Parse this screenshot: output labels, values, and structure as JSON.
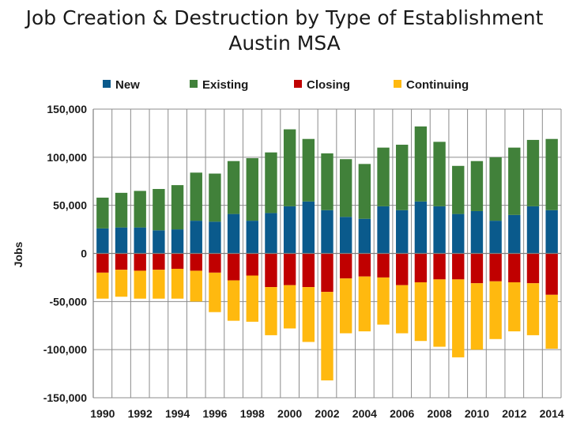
{
  "chart_data": {
    "type": "bar",
    "stacked": true,
    "title": "Job Creation & Destruction by Type of Establishment",
    "subtitle": "Austin MSA",
    "ylabel": "Jobs",
    "xlabel": "",
    "ylim": [
      -150000,
      150000
    ],
    "yticks": [
      150000,
      100000,
      50000,
      0,
      -50000,
      -100000,
      -150000
    ],
    "ytick_labels": [
      "150,000",
      "100,000",
      "50,000",
      "0",
      "-50,000",
      "-100,000",
      "-150,000"
    ],
    "xtick_labels": [
      "1990",
      "1992",
      "1994",
      "1996",
      "1998",
      "2000",
      "2002",
      "2004",
      "2006",
      "2008",
      "2010",
      "2012",
      "2014"
    ],
    "grid": true,
    "legend_position": "top",
    "categories": [
      "1990",
      "1991",
      "1992",
      "1993",
      "1994",
      "1995",
      "1996",
      "1997",
      "1998",
      "1999",
      "2000",
      "2001",
      "2002",
      "2003",
      "2004",
      "2005",
      "2006",
      "2007",
      "2008",
      "2009",
      "2010",
      "2011",
      "2012",
      "2013",
      "2014"
    ],
    "series": [
      {
        "name": "New",
        "color": "#0a5a8c",
        "values": [
          26000,
          27000,
          27000,
          24000,
          25000,
          34000,
          33000,
          41000,
          34000,
          42000,
          49000,
          54000,
          45000,
          38000,
          36000,
          49000,
          45000,
          54000,
          49000,
          41000,
          44000,
          34000,
          40000,
          49000,
          45000
        ]
      },
      {
        "name": "Existing",
        "color": "#41813a",
        "values": [
          32000,
          36000,
          38000,
          43000,
          46000,
          50000,
          50000,
          55000,
          65000,
          63000,
          80000,
          65000,
          59000,
          60000,
          57000,
          61000,
          68000,
          78000,
          67000,
          50000,
          52000,
          66000,
          70000,
          69000,
          74000
        ]
      },
      {
        "name": "Closing",
        "color": "#c00000",
        "values": [
          -20000,
          -17000,
          -18000,
          -17000,
          -16000,
          -18000,
          -20000,
          -28000,
          -23000,
          -35000,
          -33000,
          -35000,
          -40000,
          -26000,
          -24000,
          -25000,
          -33000,
          -30000,
          -27000,
          -27000,
          -31000,
          -29000,
          -30000,
          -31000,
          -43000
        ]
      },
      {
        "name": "Continuing",
        "color": "#ffb90f",
        "values": [
          -27000,
          -28000,
          -29000,
          -30000,
          -31000,
          -32000,
          -41000,
          -42000,
          -48000,
          -50000,
          -45000,
          -57000,
          -92000,
          -57000,
          -57000,
          -49000,
          -50000,
          -61000,
          -70000,
          -81000,
          -69000,
          -60000,
          -51000,
          -54000,
          -56000
        ]
      }
    ]
  }
}
